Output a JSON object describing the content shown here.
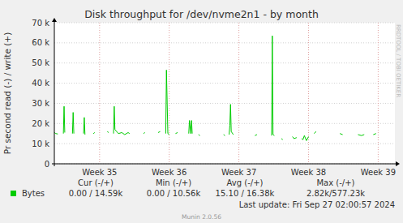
{
  "chart_data": {
    "type": "line",
    "title": "Disk throughput for /dev/nvme2n1 - by month",
    "y_label": "Pr second read (-) / write (+)",
    "watermark": "RRDTOOL / TOBI OETIKER",
    "last_update": "Last update: Fri Sep 27 02:00:57 2024",
    "footer": "Munin 2.0.56",
    "grid": true,
    "xlim": [
      34.35,
      39.24
    ],
    "xticks": [
      {
        "value": 35,
        "label": "Week 35"
      },
      {
        "value": 36,
        "label": "Week 36"
      },
      {
        "value": 37,
        "label": "Week 37"
      },
      {
        "value": 38,
        "label": "Week 38"
      },
      {
        "value": 39,
        "label": "Week 39"
      }
    ],
    "ylim": [
      0,
      70000
    ],
    "yticks": [
      0,
      {
        "value": 10000,
        "label": "10 k"
      },
      {
        "value": 20000,
        "label": "20 k"
      },
      {
        "value": 30000,
        "label": "30 k"
      },
      {
        "value": 40000,
        "label": "40 k"
      },
      {
        "value": 50000,
        "label": "50 k"
      },
      {
        "value": 60000,
        "label": "60 k"
      },
      {
        "value": 70000,
        "label": "70 k"
      }
    ],
    "x": [
      34.35,
      34.37,
      34.4,
      null,
      34.48,
      34.49,
      34.5,
      null,
      34.61,
      34.62,
      34.63,
      null,
      34.77,
      34.78,
      34.79,
      null,
      34.91,
      34.93,
      null,
      35.11,
      35.13,
      null,
      35.2,
      35.21,
      35.22,
      35.27,
      35.32,
      35.36,
      35.41,
      35.43,
      null,
      35.63,
      35.65,
      null,
      35.84,
      35.87,
      null,
      35.95,
      35.96,
      35.98,
      36.0,
      null,
      36.09,
      36.12,
      null,
      36.28,
      36.29,
      36.31,
      36.32,
      36.33,
      null,
      36.42,
      36.44,
      null,
      36.78,
      36.8,
      null,
      36.86,
      36.87,
      36.88,
      36.89,
      36.92,
      null,
      37.23,
      37.26,
      null,
      37.47,
      37.48,
      37.49,
      37.51,
      null,
      37.61,
      37.63,
      null,
      37.77,
      37.79,
      37.83,
      null,
      37.9,
      37.92,
      37.94,
      37.97,
      38.0,
      null,
      38.08,
      38.11,
      null,
      38.45,
      38.49,
      null,
      38.71,
      38.76,
      38.8,
      null,
      38.93,
      38.97
    ],
    "series": [
      {
        "name": "Bytes",
        "color": "#00CC00",
        "values": [
          15500,
          15000,
          14800,
          null,
          15000,
          28500,
          15500,
          null,
          15000,
          25500,
          15000,
          null,
          15000,
          23000,
          14500,
          null,
          15000,
          15500,
          null,
          16000,
          15500,
          null,
          15000,
          28500,
          17000,
          15000,
          15500,
          14500,
          15500,
          15000,
          null,
          15000,
          15500,
          null,
          15500,
          16000,
          null,
          15000,
          46500,
          15000,
          14500,
          null,
          15000,
          15500,
          null,
          15000,
          21500,
          15000,
          21500,
          15000,
          null,
          14500,
          14000,
          null,
          14500,
          14000,
          null,
          14500,
          19000,
          29500,
          16000,
          14500,
          null,
          14000,
          14500,
          null,
          14000,
          63500,
          14500,
          14000,
          null,
          12500,
          12000,
          null,
          13500,
          12500,
          13000,
          null,
          12500,
          12000,
          14000,
          11500,
          13500,
          null,
          15000,
          16000,
          null,
          15000,
          14500,
          null,
          14500,
          14000,
          14500,
          null,
          14500,
          15000
        ]
      }
    ],
    "stats": {
      "headers": [
        "Cur (-/+)",
        "Min (-/+)",
        "Avg (-/+)",
        "Max (-/+)"
      ],
      "values": [
        "0.00 / 14.59k",
        "0.00 / 10.56k",
        "15.10 / 16.38k",
        "2.82k/577.23k"
      ]
    }
  }
}
